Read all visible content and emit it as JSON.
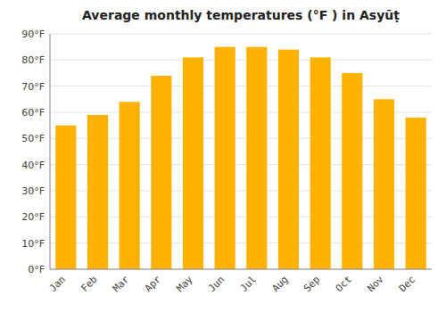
{
  "chart_data": {
    "type": "bar",
    "title": "Average monthly temperatures (°F ) in Asyūṭ",
    "categories": [
      "Jan",
      "Feb",
      "Mar",
      "Apr",
      "May",
      "Jun",
      "Jul",
      "Aug",
      "Sep",
      "Oct",
      "Nov",
      "Dec"
    ],
    "values": [
      55,
      59,
      64,
      74,
      81,
      85,
      85,
      84,
      81,
      75,
      65,
      58
    ],
    "color": "#FFB300",
    "ylim": [
      0,
      90
    ],
    "yticks": [
      {
        "value": 0,
        "label": "0°F"
      },
      {
        "value": 10,
        "label": "10°F"
      },
      {
        "value": 20,
        "label": "20°F"
      },
      {
        "value": 30,
        "label": "30°F"
      },
      {
        "value": 40,
        "label": "40°F"
      },
      {
        "value": 50,
        "label": "50°F"
      },
      {
        "value": 60,
        "label": "60°F"
      },
      {
        "value": 70,
        "label": "70°F"
      },
      {
        "value": 80,
        "label": "80°F"
      },
      {
        "value": 90,
        "label": "90°F"
      }
    ],
    "grid": true
  }
}
